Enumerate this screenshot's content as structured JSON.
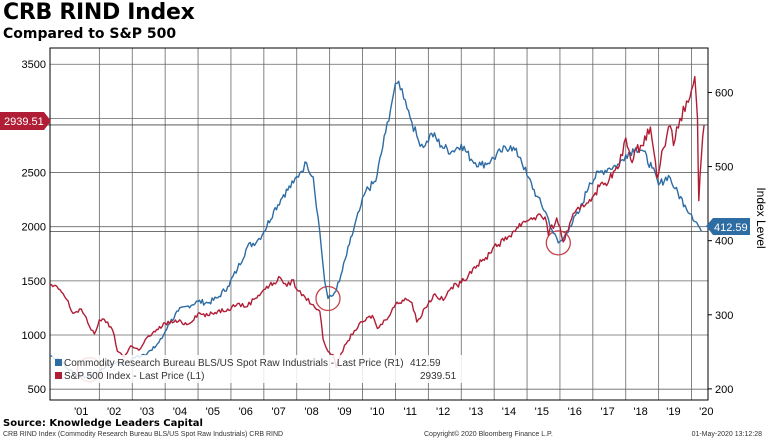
{
  "title": "CRB RIND Index",
  "subtitle": "Compared to S&P 500",
  "source": "Source: Knowledge Leaders Capital",
  "footer": {
    "left": "CRB RIND Index (Commodity Research Bureau BLS/US Spot Raw Industrials) CRB RIND",
    "middle": "Copyright© 2020 Bloomberg Finance L.P.",
    "right": "01-May-2020 13:12:28"
  },
  "chart_data": {
    "type": "line",
    "x_tick_labels": [
      "'01",
      "'02",
      "'03",
      "'04",
      "'05",
      "'06",
      "'07",
      "'08",
      "'09",
      "'10",
      "'11",
      "'12",
      "'13",
      "'14",
      "'15",
      "'16",
      "'17",
      "'18",
      "'19",
      "'20"
    ],
    "xlim": [
      2000.5,
      2020.5
    ],
    "y_left": {
      "ticks": [
        500,
        1000,
        1500,
        2000,
        2500,
        3000,
        3500
      ],
      "ylim": [
        400,
        3650
      ]
    },
    "y_right": {
      "label": "Index Level",
      "ticks": [
        200,
        300,
        400,
        500,
        600
      ],
      "ylim": [
        185,
        660
      ]
    },
    "legend": "bottom-left",
    "grid": true,
    "series": [
      {
        "name": "Commodity Research Bureau BLS/US Spot Raw Industrials - Last Price (R1)",
        "legend_value": "412.59",
        "axis": "right",
        "color": "#2e6ca4",
        "last_label": "412.59",
        "points": [
          [
            2000.5,
            245
          ],
          [
            2000.8,
            240
          ],
          [
            2001.0,
            228
          ],
          [
            2001.3,
            220
          ],
          [
            2001.6,
            216
          ],
          [
            2001.9,
            221
          ],
          [
            2002.2,
            231
          ],
          [
            2002.5,
            236
          ],
          [
            2002.8,
            234
          ],
          [
            2003.0,
            241
          ],
          [
            2003.3,
            246
          ],
          [
            2003.6,
            252
          ],
          [
            2003.9,
            268
          ],
          [
            2004.1,
            287
          ],
          [
            2004.4,
            305
          ],
          [
            2004.7,
            312
          ],
          [
            2005.0,
            318
          ],
          [
            2005.3,
            316
          ],
          [
            2005.6,
            323
          ],
          [
            2005.9,
            338
          ],
          [
            2006.2,
            362
          ],
          [
            2006.5,
            392
          ],
          [
            2006.8,
            400
          ],
          [
            2007.0,
            412
          ],
          [
            2007.3,
            440
          ],
          [
            2007.6,
            462
          ],
          [
            2007.9,
            478
          ],
          [
            2008.1,
            492
          ],
          [
            2008.3,
            505
          ],
          [
            2008.5,
            486
          ],
          [
            2008.7,
            412
          ],
          [
            2008.85,
            345
          ],
          [
            2008.95,
            322
          ],
          [
            2009.1,
            326
          ],
          [
            2009.3,
            345
          ],
          [
            2009.6,
            395
          ],
          [
            2009.9,
            440
          ],
          [
            2010.1,
            467
          ],
          [
            2010.4,
            480
          ],
          [
            2010.7,
            546
          ],
          [
            2010.95,
            600
          ],
          [
            2011.1,
            615
          ],
          [
            2011.3,
            590
          ],
          [
            2011.5,
            560
          ],
          [
            2011.7,
            535
          ],
          [
            2011.9,
            528
          ],
          [
            2012.1,
            545
          ],
          [
            2012.4,
            528
          ],
          [
            2012.7,
            520
          ],
          [
            2013.0,
            530
          ],
          [
            2013.3,
            510
          ],
          [
            2013.6,
            502
          ],
          [
            2013.9,
            508
          ],
          [
            2014.2,
            520
          ],
          [
            2014.5,
            528
          ],
          [
            2014.8,
            512
          ],
          [
            2015.0,
            488
          ],
          [
            2015.3,
            460
          ],
          [
            2015.6,
            435
          ],
          [
            2015.8,
            410
          ],
          [
            2015.95,
            397
          ],
          [
            2016.1,
            402
          ],
          [
            2016.3,
            420
          ],
          [
            2016.6,
            440
          ],
          [
            2016.9,
            478
          ],
          [
            2017.2,
            492
          ],
          [
            2017.5,
            498
          ],
          [
            2017.8,
            503
          ],
          [
            2018.0,
            516
          ],
          [
            2018.3,
            525
          ],
          [
            2018.5,
            522
          ],
          [
            2018.8,
            498
          ],
          [
            2019.0,
            475
          ],
          [
            2019.3,
            488
          ],
          [
            2019.5,
            470
          ],
          [
            2019.8,
            448
          ],
          [
            2020.0,
            435
          ],
          [
            2020.15,
            425
          ],
          [
            2020.3,
            412.59
          ]
        ]
      },
      {
        "name": "S&P 500 Index - Last Price (L1)",
        "legend_value": "2939.51",
        "axis": "left",
        "color": "#b01e36",
        "last_label": "2939.51",
        "points": [
          [
            2000.5,
            1460
          ],
          [
            2000.8,
            1420
          ],
          [
            2001.0,
            1330
          ],
          [
            2001.2,
            1200
          ],
          [
            2001.45,
            1240
          ],
          [
            2001.7,
            1080
          ],
          [
            2001.85,
            1010
          ],
          [
            2002.0,
            1140
          ],
          [
            2002.25,
            1120
          ],
          [
            2002.45,
            1000
          ],
          [
            2002.55,
            850
          ],
          [
            2002.75,
            800
          ],
          [
            2002.95,
            900
          ],
          [
            2003.2,
            860
          ],
          [
            2003.4,
            960
          ],
          [
            2003.7,
            1030
          ],
          [
            2004.0,
            1110
          ],
          [
            2004.4,
            1125
          ],
          [
            2004.7,
            1100
          ],
          [
            2005.0,
            1200
          ],
          [
            2005.3,
            1180
          ],
          [
            2005.6,
            1220
          ],
          [
            2005.9,
            1240
          ],
          [
            2006.2,
            1290
          ],
          [
            2006.45,
            1260
          ],
          [
            2006.7,
            1330
          ],
          [
            2007.0,
            1420
          ],
          [
            2007.3,
            1480
          ],
          [
            2007.5,
            1530
          ],
          [
            2007.7,
            1450
          ],
          [
            2007.9,
            1510
          ],
          [
            2008.0,
            1420
          ],
          [
            2008.25,
            1350
          ],
          [
            2008.5,
            1280
          ],
          [
            2008.7,
            1220
          ],
          [
            2008.8,
            960
          ],
          [
            2008.95,
            850
          ],
          [
            2009.1,
            820
          ],
          [
            2009.2,
            700
          ],
          [
            2009.35,
            830
          ],
          [
            2009.5,
            920
          ],
          [
            2009.75,
            1040
          ],
          [
            2010.0,
            1120
          ],
          [
            2010.3,
            1180
          ],
          [
            2010.45,
            1060
          ],
          [
            2010.7,
            1140
          ],
          [
            2011.0,
            1280
          ],
          [
            2011.3,
            1340
          ],
          [
            2011.5,
            1300
          ],
          [
            2011.65,
            1120
          ],
          [
            2011.9,
            1250
          ],
          [
            2012.2,
            1380
          ],
          [
            2012.45,
            1320
          ],
          [
            2012.7,
            1440
          ],
          [
            2013.0,
            1480
          ],
          [
            2013.4,
            1630
          ],
          [
            2013.7,
            1690
          ],
          [
            2014.0,
            1820
          ],
          [
            2014.3,
            1870
          ],
          [
            2014.6,
            1960
          ],
          [
            2014.9,
            2050
          ],
          [
            2015.3,
            2100
          ],
          [
            2015.55,
            2090
          ],
          [
            2015.65,
            1920
          ],
          [
            2015.9,
            2080
          ],
          [
            2016.1,
            1860
          ],
          [
            2016.35,
            2070
          ],
          [
            2016.6,
            2160
          ],
          [
            2016.9,
            2250
          ],
          [
            2017.2,
            2370
          ],
          [
            2017.5,
            2440
          ],
          [
            2017.8,
            2560
          ],
          [
            2018.0,
            2820
          ],
          [
            2018.15,
            2620
          ],
          [
            2018.45,
            2750
          ],
          [
            2018.75,
            2920
          ],
          [
            2018.95,
            2450
          ],
          [
            2019.1,
            2700
          ],
          [
            2019.35,
            2930
          ],
          [
            2019.45,
            2750
          ],
          [
            2019.65,
            3000
          ],
          [
            2019.9,
            3150
          ],
          [
            2020.1,
            3386
          ],
          [
            2020.18,
            3000
          ],
          [
            2020.22,
            2240
          ],
          [
            2020.3,
            2650
          ],
          [
            2020.38,
            2939.51
          ]
        ]
      }
    ]
  }
}
